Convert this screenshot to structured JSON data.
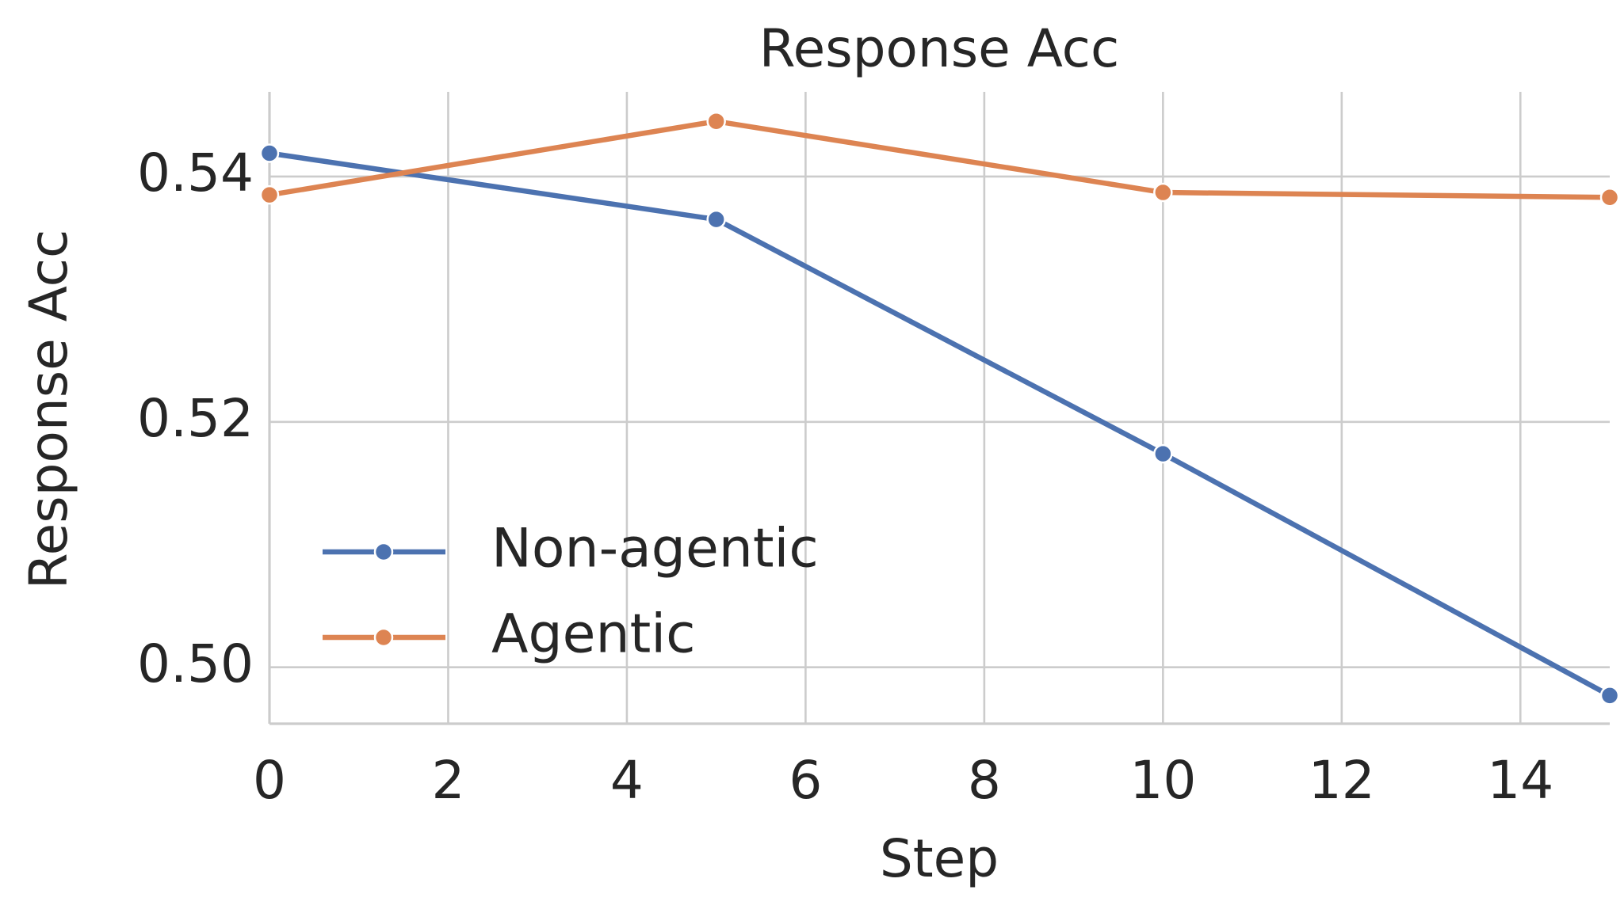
{
  "chart_data": {
    "type": "line",
    "title": "Response Acc",
    "xlabel": "Step",
    "ylabel": "Response Acc",
    "x": [
      0,
      5,
      10,
      15
    ],
    "series": [
      {
        "name": "Non-agentic",
        "color": "#4c72b0",
        "values": [
          0.5419,
          0.5365,
          0.5174,
          0.4977
        ]
      },
      {
        "name": "Agentic",
        "color": "#dd8452",
        "values": [
          0.5385,
          0.5445,
          0.5387,
          0.5383
        ]
      }
    ],
    "xlim": [
      0,
      15
    ],
    "xticks": [
      0,
      2,
      4,
      6,
      8,
      10,
      12,
      14
    ],
    "ylim": [
      0.4954,
      0.5469
    ],
    "yticks": [
      {
        "value": 0.5,
        "label": "0.50"
      },
      {
        "value": 0.52,
        "label": "0.52"
      },
      {
        "value": 0.54,
        "label": "0.54"
      }
    ],
    "grid": true,
    "legend": "lower left"
  }
}
